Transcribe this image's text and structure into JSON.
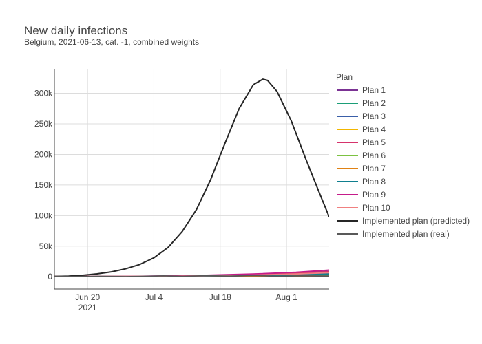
{
  "chart_data": {
    "type": "line",
    "title": "New daily infections",
    "subtitle": "Belgium, 2021-06-13, cat. -1, combined weights",
    "legend_title": "Plan",
    "legend_position": "right",
    "grid": true,
    "xlabel": "",
    "ylabel": "",
    "x_start": "2021-06-13",
    "xlim": [
      "2021-06-13",
      "2021-08-10"
    ],
    "ylim": [
      -20000,
      340000
    ],
    "x_ticks": [
      {
        "date": "2021-06-20",
        "label": "Jun 20",
        "sublabel": "2021"
      },
      {
        "date": "2021-07-04",
        "label": "Jul 4",
        "sublabel": ""
      },
      {
        "date": "2021-07-18",
        "label": "Jul 18",
        "sublabel": ""
      },
      {
        "date": "2021-08-01",
        "label": "Aug 1",
        "sublabel": ""
      }
    ],
    "y_ticks": [
      {
        "value": 0,
        "label": "0"
      },
      {
        "value": 50000,
        "label": "50k"
      },
      {
        "value": 100000,
        "label": "100k"
      },
      {
        "value": 150000,
        "label": "150k"
      },
      {
        "value": 200000,
        "label": "200k"
      },
      {
        "value": 250000,
        "label": "250k"
      },
      {
        "value": 300000,
        "label": "300k"
      }
    ],
    "series": [
      {
        "name": "Plan 1",
        "color": "#7b3294",
        "x": [
          "2021-06-13",
          "2021-06-27",
          "2021-07-11",
          "2021-07-25",
          "2021-08-03",
          "2021-08-10"
        ],
        "y": [
          500,
          600,
          1500,
          4000,
          6500,
          9000
        ]
      },
      {
        "name": "Plan 2",
        "color": "#1b9e77",
        "x": [
          "2021-06-13",
          "2021-06-27",
          "2021-07-11",
          "2021-07-25",
          "2021-08-03",
          "2021-08-10"
        ],
        "y": [
          500,
          550,
          900,
          1800,
          2800,
          3800
        ]
      },
      {
        "name": "Plan 3",
        "color": "#3a5fa8",
        "x": [
          "2021-06-13",
          "2021-06-27",
          "2021-07-11",
          "2021-07-25",
          "2021-08-03",
          "2021-08-10"
        ],
        "y": [
          500,
          560,
          1000,
          2300,
          3500,
          5000
        ]
      },
      {
        "name": "Plan 4",
        "color": "#f2b600",
        "x": [
          "2021-06-13",
          "2021-06-27",
          "2021-07-11",
          "2021-07-25",
          "2021-08-03",
          "2021-08-10"
        ],
        "y": [
          500,
          500,
          600,
          700,
          800,
          900
        ]
      },
      {
        "name": "Plan 5",
        "color": "#d6336c",
        "x": [
          "2021-06-13",
          "2021-06-27",
          "2021-07-11",
          "2021-07-25",
          "2021-08-03",
          "2021-08-10"
        ],
        "y": [
          500,
          600,
          1400,
          3800,
          6000,
          8500
        ]
      },
      {
        "name": "Plan 6",
        "color": "#7cc242",
        "x": [
          "2021-06-13",
          "2021-06-27",
          "2021-07-11",
          "2021-07-25",
          "2021-08-03",
          "2021-08-10"
        ],
        "y": [
          500,
          520,
          700,
          1100,
          1500,
          2000
        ]
      },
      {
        "name": "Plan 7",
        "color": "#e08214",
        "x": [
          "2021-06-13",
          "2021-06-27",
          "2021-07-11",
          "2021-07-25",
          "2021-08-03",
          "2021-08-10"
        ],
        "y": [
          500,
          500,
          550,
          600,
          700,
          800
        ]
      },
      {
        "name": "Plan 8",
        "color": "#0f7f8f",
        "x": [
          "2021-06-13",
          "2021-06-27",
          "2021-07-11",
          "2021-07-25",
          "2021-08-03",
          "2021-08-10"
        ],
        "y": [
          500,
          550,
          900,
          2000,
          3200,
          4500
        ]
      },
      {
        "name": "Plan 9",
        "color": "#c51b8a",
        "x": [
          "2021-06-13",
          "2021-06-27",
          "2021-07-11",
          "2021-07-25",
          "2021-08-03",
          "2021-08-10"
        ],
        "y": [
          500,
          650,
          1700,
          4500,
          7500,
          11000
        ]
      },
      {
        "name": "Plan 10",
        "color": "#f08080",
        "x": [
          "2021-06-13",
          "2021-06-27",
          "2021-07-11",
          "2021-07-25",
          "2021-08-03",
          "2021-08-10"
        ],
        "y": [
          500,
          580,
          1100,
          2700,
          4500,
          6500
        ]
      },
      {
        "name": "Implemented plan (predicted)",
        "color": "#262626",
        "x": [
          "2021-06-13",
          "2021-06-16",
          "2021-06-19",
          "2021-06-22",
          "2021-06-25",
          "2021-06-28",
          "2021-07-01",
          "2021-07-04",
          "2021-07-07",
          "2021-07-10",
          "2021-07-13",
          "2021-07-16",
          "2021-07-19",
          "2021-07-22",
          "2021-07-25",
          "2021-07-27",
          "2021-07-28",
          "2021-07-30",
          "2021-08-02",
          "2021-08-05",
          "2021-08-08",
          "2021-08-10"
        ],
        "y": [
          500,
          1200,
          2500,
          4700,
          8000,
          13000,
          20000,
          31000,
          48000,
          74000,
          110000,
          159000,
          218000,
          275000,
          314000,
          323000,
          321000,
          303000,
          255000,
          194000,
          136000,
          98000
        ]
      },
      {
        "name": "Implemented plan (real)",
        "color": "#595959",
        "x": [
          "2021-06-13",
          "2021-06-18",
          "2021-06-23",
          "2021-06-28",
          "2021-07-03",
          "2021-07-06",
          "2021-07-10",
          "2021-07-15",
          "2021-07-20",
          "2021-07-25",
          "2021-07-30",
          "2021-08-04",
          "2021-08-10"
        ],
        "y": [
          500,
          400,
          600,
          300,
          900,
          1500,
          700,
          1800,
          1000,
          2200,
          800,
          1500,
          1200
        ]
      }
    ]
  }
}
